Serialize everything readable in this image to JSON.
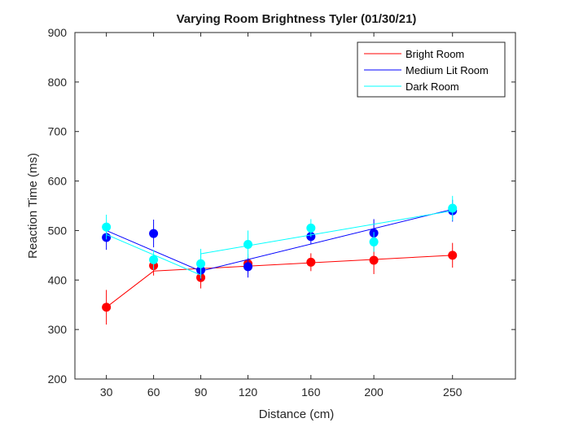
{
  "chart_data": {
    "type": "line",
    "title": "Varying Room Brightness Tyler (01/30/21)",
    "xlabel": "Distance (cm)",
    "ylabel": "Reaction Time (ms)",
    "xlim": [
      10,
      290
    ],
    "ylim": [
      200,
      900
    ],
    "xticks": [
      30,
      60,
      90,
      120,
      160,
      200,
      250
    ],
    "yticks": [
      200,
      300,
      400,
      500,
      600,
      700,
      800,
      900
    ],
    "grid": false,
    "legend_position": "top-right",
    "series": [
      {
        "name": "Bright Room",
        "color": "#ff0000",
        "points": [
          {
            "x": 30,
            "y": 345,
            "err": 35
          },
          {
            "x": 60,
            "y": 429,
            "err": 20
          },
          {
            "x": 90,
            "y": 405,
            "err": 22
          },
          {
            "x": 120,
            "y": 433,
            "err": 20
          },
          {
            "x": 160,
            "y": 436,
            "err": 18
          },
          {
            "x": 200,
            "y": 440,
            "err": 28
          },
          {
            "x": 250,
            "y": 450,
            "err": 25
          }
        ],
        "fit": [
          [
            60,
            418
          ],
          [
            250,
            450
          ]
        ],
        "fit_extra": [
          [
            30,
            345
          ],
          [
            60,
            418
          ]
        ]
      },
      {
        "name": "Medium Lit Room",
        "color": "#0000ff",
        "points": [
          {
            "x": 30,
            "y": 486,
            "err": 25
          },
          {
            "x": 60,
            "y": 494,
            "err": 28
          },
          {
            "x": 90,
            "y": 420,
            "err": 20
          },
          {
            "x": 120,
            "y": 427,
            "err": 22
          },
          {
            "x": 160,
            "y": 488,
            "err": 15
          },
          {
            "x": 200,
            "y": 495,
            "err": 28
          },
          {
            "x": 250,
            "y": 540,
            "err": 22
          }
        ],
        "fit": [
          [
            30,
            500
          ],
          [
            90,
            418
          ],
          [
            250,
            543
          ]
        ]
      },
      {
        "name": "Dark Room",
        "color": "#00ffff",
        "points": [
          {
            "x": 30,
            "y": 507,
            "err": 25
          },
          {
            "x": 60,
            "y": 441,
            "err": 20
          },
          {
            "x": 90,
            "y": 433,
            "err": 30
          },
          {
            "x": 120,
            "y": 472,
            "err": 28
          },
          {
            "x": 160,
            "y": 505,
            "err": 18
          },
          {
            "x": 200,
            "y": 477,
            "err": 20
          },
          {
            "x": 250,
            "y": 545,
            "err": 25
          }
        ],
        "fit": [
          [
            30,
            492
          ],
          [
            90,
            410
          ],
          [
            90,
            453
          ],
          [
            250,
            540
          ]
        ]
      }
    ]
  }
}
